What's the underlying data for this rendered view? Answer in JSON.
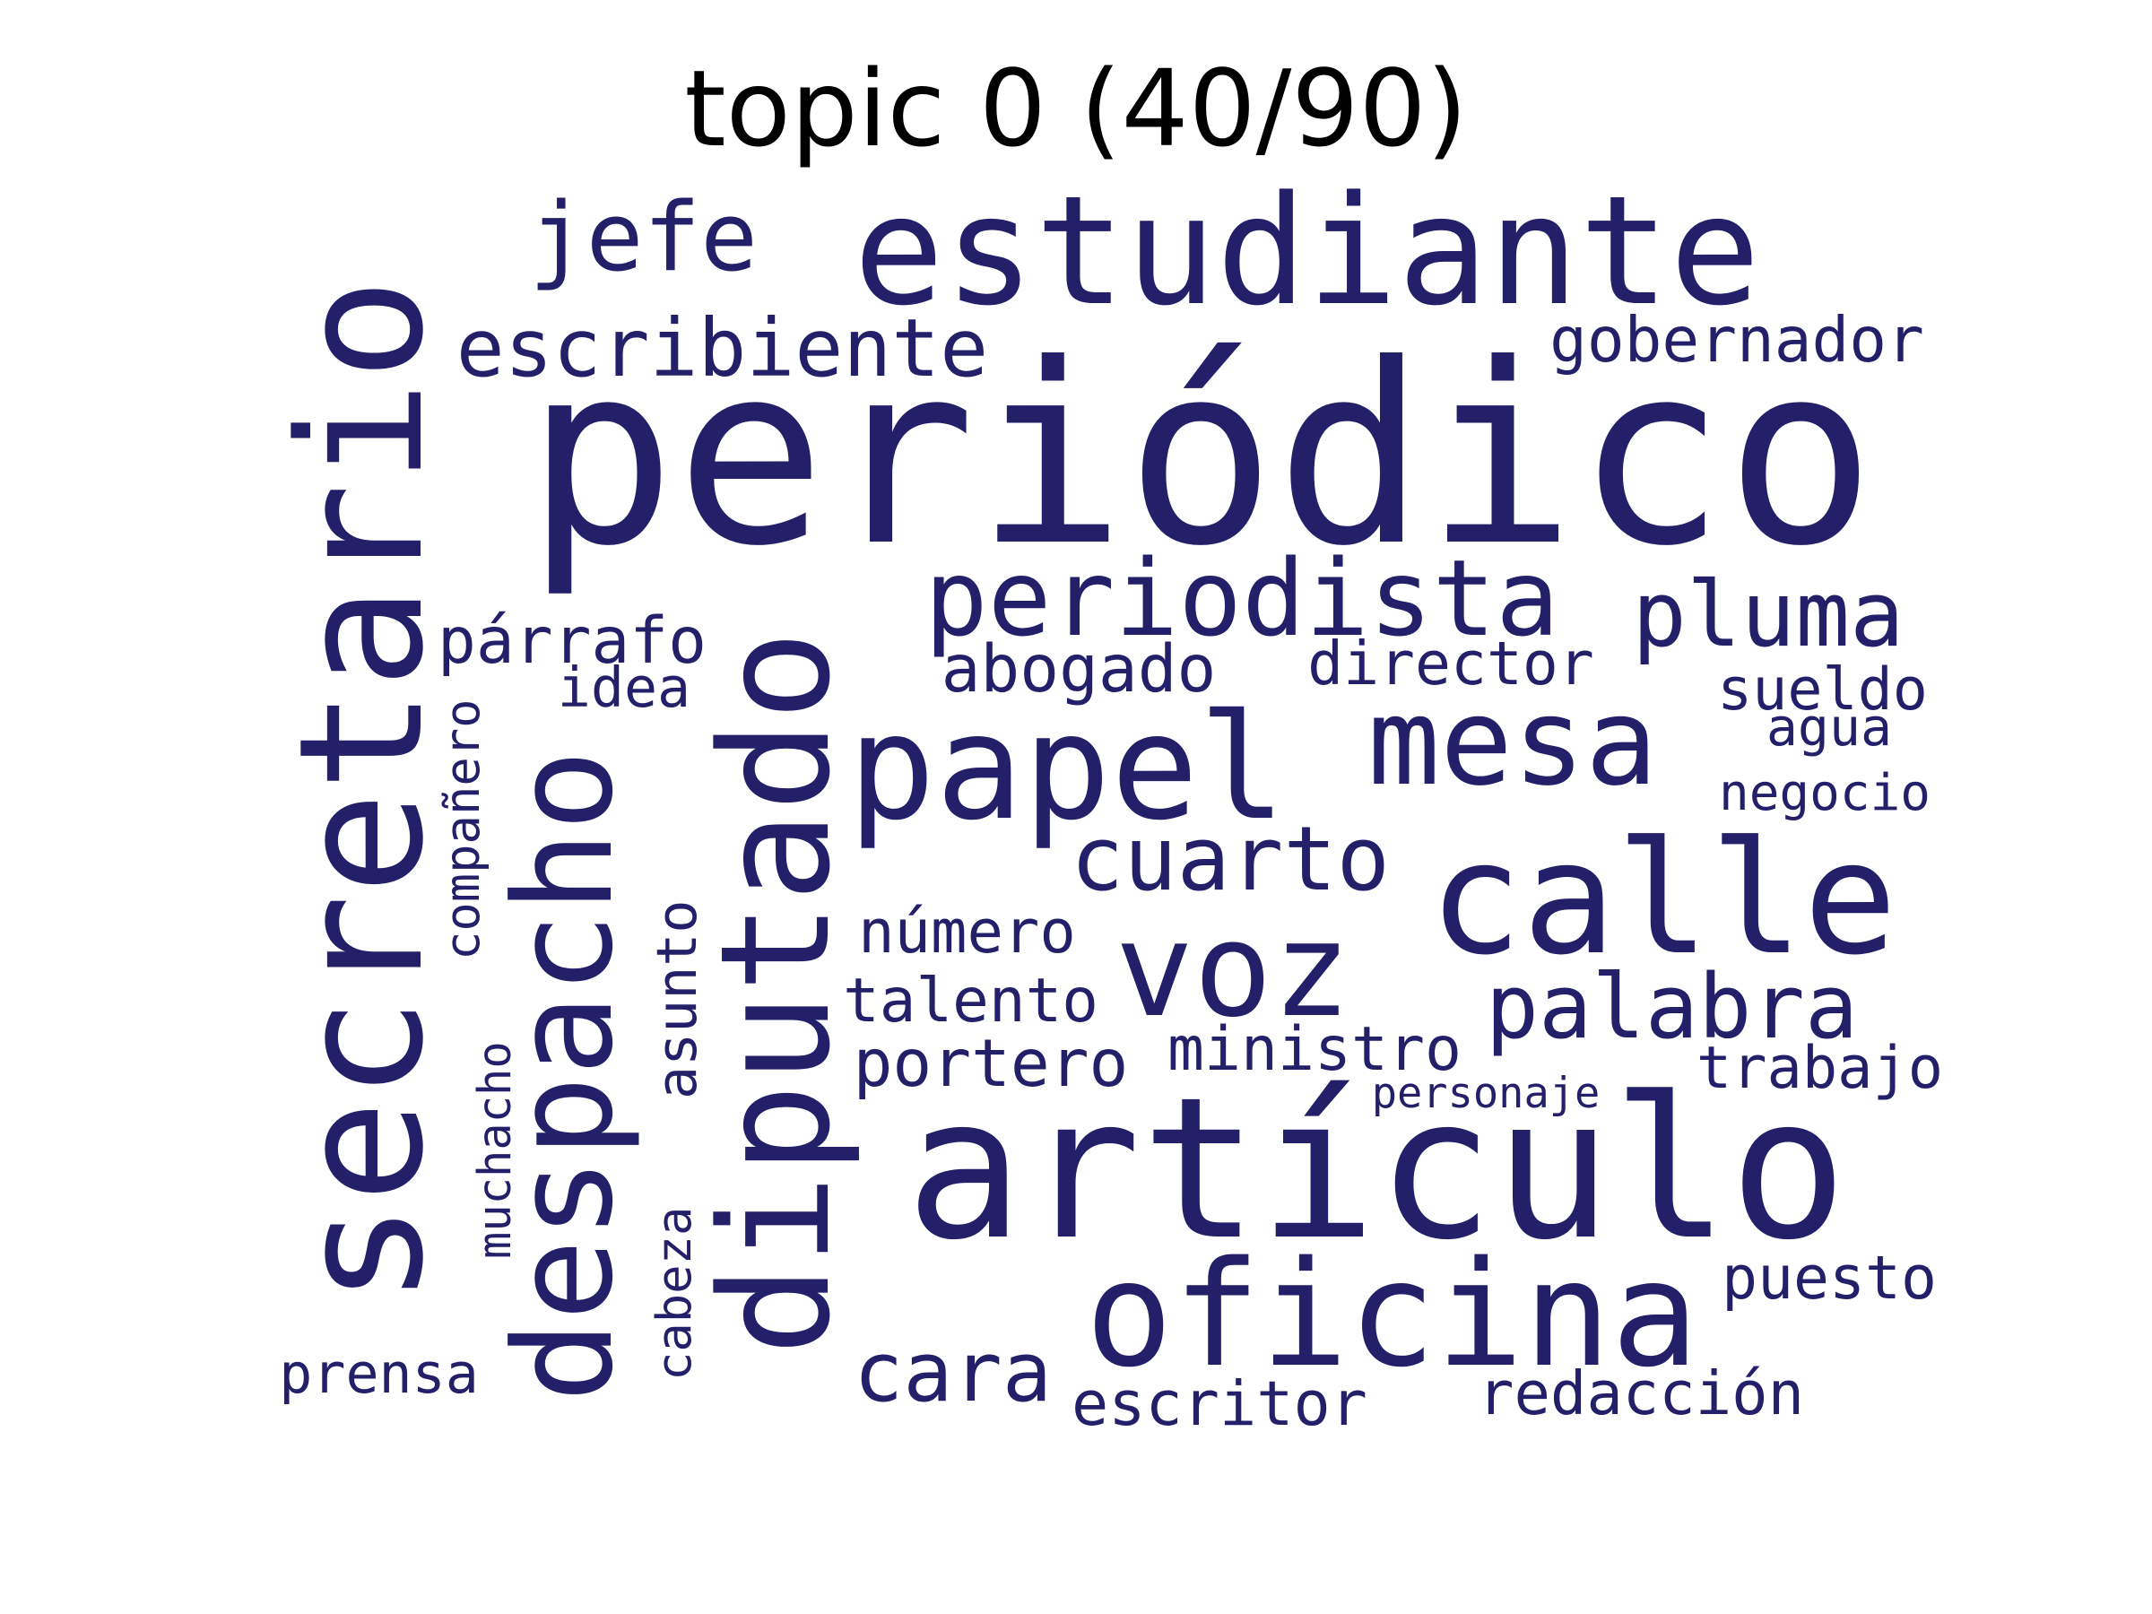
{
  "title": "topic 0 (40/90)",
  "color": "#231f69",
  "words": [
    {
      "text": "periódico",
      "orientation": "horizontal"
    },
    {
      "text": "secretario",
      "orientation": "vertical"
    },
    {
      "text": "artículo",
      "orientation": "horizontal"
    },
    {
      "text": "diputado",
      "orientation": "vertical"
    },
    {
      "text": "estudiante",
      "orientation": "horizontal"
    },
    {
      "text": "mesa",
      "orientation": "horizontal"
    },
    {
      "text": "calle",
      "orientation": "horizontal"
    },
    {
      "text": "papel",
      "orientation": "horizontal"
    },
    {
      "text": "oficina",
      "orientation": "horizontal"
    },
    {
      "text": "despacho",
      "orientation": "vertical"
    },
    {
      "text": "voz",
      "orientation": "horizontal"
    },
    {
      "text": "periodista",
      "orientation": "horizontal"
    },
    {
      "text": "pluma",
      "orientation": "horizontal"
    },
    {
      "text": "palabra",
      "orientation": "horizontal"
    },
    {
      "text": "cuarto",
      "orientation": "horizontal"
    },
    {
      "text": "cara",
      "orientation": "horizontal"
    },
    {
      "text": "jefe",
      "orientation": "horizontal"
    },
    {
      "text": "escribiente",
      "orientation": "horizontal"
    },
    {
      "text": "gobernador",
      "orientation": "horizontal"
    },
    {
      "text": "redacción",
      "orientation": "horizontal"
    },
    {
      "text": "portero",
      "orientation": "horizontal"
    },
    {
      "text": "párrafo",
      "orientation": "horizontal"
    },
    {
      "text": "escritor",
      "orientation": "horizontal"
    },
    {
      "text": "abogado",
      "orientation": "horizontal"
    },
    {
      "text": "director",
      "orientation": "horizontal"
    },
    {
      "text": "ministro",
      "orientation": "horizontal"
    },
    {
      "text": "talento",
      "orientation": "horizontal"
    },
    {
      "text": "trabajo",
      "orientation": "horizontal"
    },
    {
      "text": "sueldo",
      "orientation": "horizontal"
    },
    {
      "text": "puesto",
      "orientation": "horizontal"
    },
    {
      "text": "número",
      "orientation": "horizontal"
    },
    {
      "text": "asunto",
      "orientation": "vertical"
    },
    {
      "text": "compañero",
      "orientation": "vertical"
    },
    {
      "text": "muchacho",
      "orientation": "vertical"
    },
    {
      "text": "prensa",
      "orientation": "horizontal"
    },
    {
      "text": "agua",
      "orientation": "horizontal"
    },
    {
      "text": "idea",
      "orientation": "horizontal"
    },
    {
      "text": "negocio",
      "orientation": "horizontal"
    },
    {
      "text": "cabeza",
      "orientation": "vertical"
    },
    {
      "text": "personaje",
      "orientation": "horizontal"
    }
  ]
}
